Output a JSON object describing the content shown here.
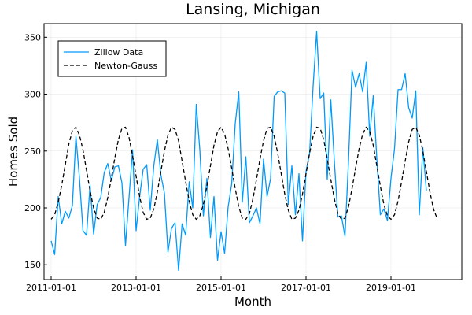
{
  "chart_data": {
    "type": "line",
    "title": "Lansing, Michigan",
    "xlabel": "Month",
    "ylabel": "Homes Sold",
    "x_start": "2011-01",
    "x_frequency": "monthly",
    "xlim": [
      "2010-11",
      "2020-09"
    ],
    "ylim": [
      137,
      362
    ],
    "xticks": [
      "2011-01-01",
      "2013-01-01",
      "2015-01-01",
      "2017-01-01",
      "2019-01-01"
    ],
    "yticks": [
      150,
      200,
      250,
      300,
      350
    ],
    "grid": true,
    "legend_position": "top-left",
    "series": [
      {
        "name": "Zillow Data",
        "color": "#009af9",
        "style": "solid",
        "values": [
          171,
          159,
          210,
          186,
          197,
          191,
          202,
          263,
          226,
          180,
          176,
          220,
          177,
          203,
          209,
          231,
          239,
          224,
          236,
          237,
          222,
          167,
          209,
          251,
          180,
          210,
          234,
          238,
          198,
          237,
          260,
          229,
          213,
          161,
          182,
          187,
          145,
          186,
          176,
          223,
          200,
          291,
          251,
          193,
          226,
          174,
          210,
          154,
          179,
          160,
          201,
          221,
          274,
          302,
          205,
          245,
          187,
          193,
          200,
          186,
          243,
          210,
          226,
          298,
          302,
          303,
          301,
          203,
          237,
          194,
          230,
          171,
          232,
          248,
          307,
          355,
          296,
          301,
          225,
          295,
          241,
          192,
          193,
          175,
          241,
          321,
          306,
          318,
          302,
          328,
          263,
          299,
          243,
          194,
          199,
          189,
          226,
          252,
          304,
          304,
          318,
          288,
          279,
          303,
          194,
          253,
          215
        ]
      },
      {
        "name": "Newton-Gauss",
        "color": "#000000",
        "style": "dashed",
        "values": [
          190,
          194,
          205,
          220,
          238,
          256,
          268,
          271,
          264,
          251,
          233,
          215,
          200,
          191,
          190,
          196,
          209,
          226,
          244,
          260,
          270,
          271,
          262,
          246,
          228,
          210,
          196,
          190,
          191,
          199,
          214,
          232,
          250,
          264,
          271,
          269,
          259,
          241,
          223,
          206,
          194,
          190,
          193,
          203,
          219,
          237,
          255,
          267,
          271,
          265,
          252,
          235,
          217,
          201,
          191,
          190,
          195,
          208,
          225,
          243,
          259,
          270,
          271,
          263,
          248,
          230,
          212,
          198,
          190,
          191,
          198,
          212,
          230,
          248,
          263,
          271,
          270,
          260,
          243,
          225,
          208,
          195,
          190,
          191,
          201,
          217,
          235,
          252,
          265,
          271,
          267,
          255,
          237,
          219,
          203,
          193,
          190,
          194,
          206,
          223,
          241,
          258,
          269,
          271,
          264,
          250,
          232,
          214,
          199,
          191
        ]
      }
    ]
  }
}
